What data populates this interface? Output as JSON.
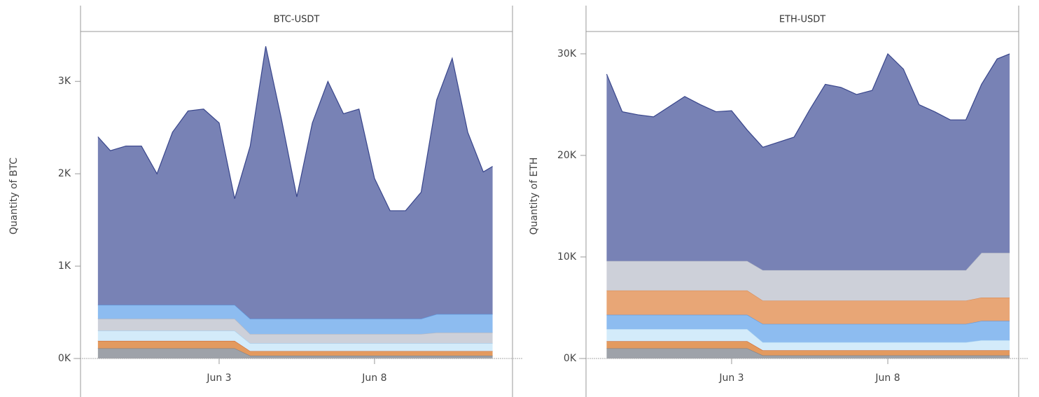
{
  "chart_data": [
    {
      "type": "area",
      "stacked": true,
      "title": "BTC-USDT",
      "y_label": "Quantity of BTC",
      "x": [
        -0.9,
        -0.5,
        0,
        0.5,
        1,
        1.5,
        2,
        2.5,
        3,
        3.5,
        4,
        4.5,
        5,
        5.5,
        6,
        6.5,
        7,
        7.5,
        8,
        8.5,
        9,
        9.5,
        10,
        10.5,
        11,
        11.5,
        11.8
      ],
      "xlim": [
        -1.46,
        12.44
      ],
      "xticks": [
        {
          "value": 3,
          "label": "Jun 3"
        },
        {
          "value": 8,
          "label": "Jun 8"
        }
      ],
      "ylim": [
        0,
        3540
      ],
      "yticks": [
        {
          "value": 0,
          "label": "0K"
        },
        {
          "value": 1000,
          "label": "1K"
        },
        {
          "value": 2000,
          "label": "2K"
        },
        {
          "value": 3000,
          "label": "3K"
        }
      ],
      "series": [
        {
          "color": "#9ea2a9",
          "line_color": "#7d8189",
          "values": [
            110,
            110,
            110,
            110,
            110,
            110,
            110,
            110,
            110,
            110,
            30,
            30,
            30,
            30,
            30,
            30,
            30,
            30,
            30,
            30,
            30,
            30,
            30,
            30,
            30,
            30,
            30
          ]
        },
        {
          "color": "#e39a5f",
          "line_color": "#d0652a",
          "values": [
            80,
            80,
            80,
            80,
            80,
            80,
            80,
            80,
            80,
            80,
            50,
            50,
            50,
            50,
            50,
            50,
            50,
            50,
            50,
            50,
            50,
            50,
            50,
            50,
            50,
            50,
            50
          ]
        },
        {
          "color": "#d3ebfa",
          "line_color": "#a8d2f0",
          "values": [
            110,
            110,
            110,
            110,
            110,
            110,
            110,
            110,
            110,
            110,
            85,
            85,
            85,
            85,
            85,
            85,
            85,
            85,
            85,
            85,
            85,
            85,
            85,
            85,
            85,
            85,
            85
          ]
        },
        {
          "color": "#cdd0d9",
          "line_color": "#b3b7c3",
          "values": [
            130,
            130,
            130,
            130,
            130,
            130,
            130,
            130,
            130,
            130,
            100,
            100,
            100,
            100,
            100,
            100,
            100,
            100,
            100,
            100,
            100,
            100,
            115,
            115,
            115,
            115,
            115
          ]
        },
        {
          "color": "#8dbcf0",
          "line_color": "#5b97e0",
          "values": [
            150,
            150,
            150,
            150,
            150,
            150,
            150,
            150,
            150,
            150,
            165,
            165,
            165,
            165,
            165,
            165,
            165,
            165,
            165,
            165,
            165,
            165,
            200,
            200,
            200,
            200,
            200
          ]
        },
        {
          "color": "#7882b5",
          "line_color": "#38458b",
          "values": [
            1820,
            1670,
            1720,
            1720,
            1420,
            1870,
            2100,
            2120,
            1970,
            1150,
            1870,
            2950,
            2170,
            1320,
            2120,
            2570,
            2220,
            2270,
            1520,
            1170,
            1170,
            1370,
            2320,
            2770,
            1970,
            1540,
            1600
          ]
        }
      ]
    },
    {
      "type": "area",
      "stacked": true,
      "title": "ETH-USDT",
      "y_label": "Quantity of ETH",
      "x": [
        -1,
        -0.5,
        0,
        0.5,
        1,
        1.5,
        2,
        2.5,
        3,
        3.5,
        4,
        4.5,
        5,
        5.5,
        6,
        6.5,
        7,
        7.5,
        8,
        8.5,
        9,
        9.5,
        10,
        10.5,
        11,
        11.5,
        11.9
      ],
      "xlim": [
        -1.66,
        12.19
      ],
      "xticks": [
        {
          "value": 3,
          "label": "Jun 3"
        },
        {
          "value": 8,
          "label": "Jun 8"
        }
      ],
      "ylim": [
        0,
        32200
      ],
      "yticks": [
        {
          "value": 0,
          "label": "0K"
        },
        {
          "value": 10000,
          "label": "10K"
        },
        {
          "value": 20000,
          "label": "20K"
        },
        {
          "value": 30000,
          "label": "30K"
        }
      ],
      "series": [
        {
          "color": "#9ea2a9",
          "line_color": "#7d8189",
          "values": [
            1000,
            1000,
            1000,
            1000,
            1000,
            1000,
            1000,
            1000,
            1000,
            1000,
            300,
            300,
            300,
            300,
            300,
            300,
            300,
            300,
            300,
            300,
            300,
            300,
            300,
            300,
            300,
            300,
            300
          ]
        },
        {
          "color": "#e39a5f",
          "line_color": "#d0652a",
          "values": [
            700,
            700,
            700,
            700,
            700,
            700,
            700,
            700,
            700,
            700,
            500,
            500,
            500,
            500,
            500,
            500,
            500,
            500,
            500,
            500,
            500,
            500,
            500,
            500,
            500,
            500,
            500
          ]
        },
        {
          "color": "#d3ebfa",
          "line_color": "#a8d2f0",
          "values": [
            1200,
            1200,
            1200,
            1200,
            1200,
            1200,
            1200,
            1200,
            1200,
            1200,
            800,
            800,
            800,
            800,
            800,
            800,
            800,
            800,
            800,
            800,
            800,
            800,
            800,
            800,
            1000,
            1000,
            1000
          ]
        },
        {
          "color": "#8dbcf0",
          "line_color": "#5b97e0",
          "values": [
            1400,
            1400,
            1400,
            1400,
            1400,
            1400,
            1400,
            1400,
            1400,
            1400,
            1800,
            1800,
            1800,
            1800,
            1800,
            1800,
            1800,
            1800,
            1800,
            1800,
            1800,
            1800,
            1800,
            1800,
            1900,
            1900,
            1900
          ]
        },
        {
          "color": "#e8a676",
          "line_color": "#d88a55",
          "values": [
            2400,
            2400,
            2400,
            2400,
            2400,
            2400,
            2400,
            2400,
            2400,
            2400,
            2300,
            2300,
            2300,
            2300,
            2300,
            2300,
            2300,
            2300,
            2300,
            2300,
            2300,
            2300,
            2300,
            2300,
            2300,
            2300,
            2300
          ]
        },
        {
          "color": "#cdd0d9",
          "line_color": "#b3b7c3",
          "values": [
            2900,
            2900,
            2900,
            2900,
            2900,
            2900,
            2900,
            2900,
            2900,
            2900,
            3000,
            3000,
            3000,
            3000,
            3000,
            3000,
            3000,
            3000,
            3000,
            3000,
            3000,
            3000,
            3000,
            3000,
            4400,
            4400,
            4400
          ]
        },
        {
          "color": "#7882b5",
          "line_color": "#38458b",
          "values": [
            18400,
            14700,
            14400,
            14200,
            15200,
            16200,
            15400,
            14700,
            14800,
            12900,
            12100,
            12600,
            13100,
            15800,
            18300,
            18000,
            17300,
            17700,
            21300,
            19800,
            16300,
            15600,
            14800,
            14800,
            16600,
            19100,
            19600
          ]
        }
      ]
    }
  ]
}
